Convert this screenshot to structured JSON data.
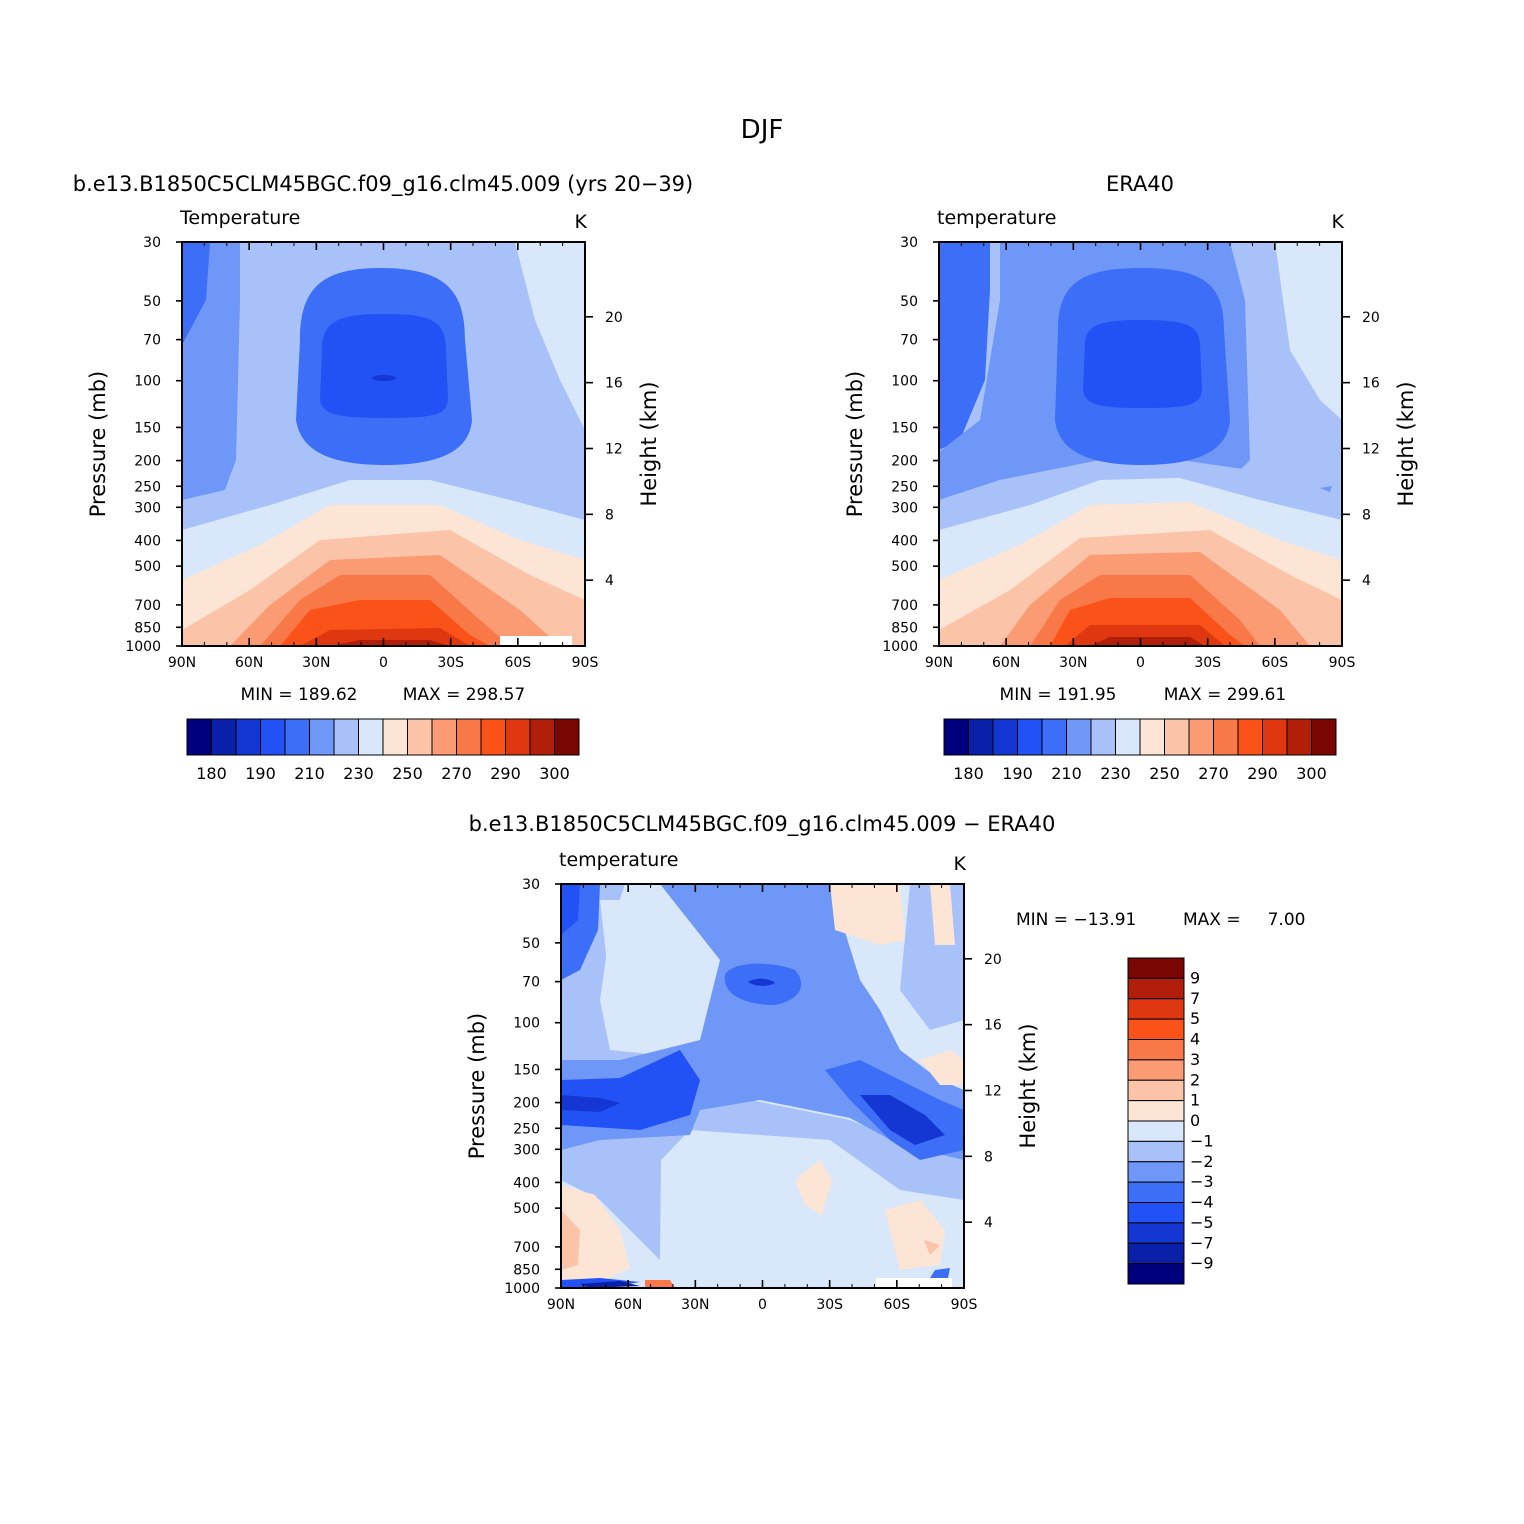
{
  "figure": {
    "title": "DJF",
    "panel_model_title": "b.e13.B1850C5CLM45BGC.f09_g16.clm45.009 (yrs 20−39)",
    "panel_obs_title": "ERA40",
    "panel_diff_title": "b.e13.B1850C5CLM45BGC.f09_g16.clm45.009 − ERA40"
  },
  "chart_data": [
    {
      "type": "contour",
      "id": "model",
      "field_label": "Temperature",
      "units": "K",
      "ylabel": "Pressure (mb)",
      "ylabel_right": "Height (km)",
      "x_ticks": [
        "90N",
        "60N",
        "30N",
        "0",
        "30S",
        "60S",
        "90S"
      ],
      "pressure_ticks": [
        30,
        50,
        70,
        100,
        150,
        200,
        250,
        300,
        400,
        500,
        700,
        850,
        1000
      ],
      "height_ticks": [
        4,
        8,
        12,
        16,
        20
      ],
      "min_text": "MIN = 189.62",
      "max_text": "MAX = 298.57",
      "min": 189.62,
      "max": 298.57,
      "colorbar_labels": [
        "180",
        "190",
        "210",
        "230",
        "250",
        "270",
        "290",
        "300"
      ],
      "colors": [
        "#00007f",
        "#0b20a8",
        "#1437d3",
        "#2251f5",
        "#3d6ef7",
        "#6f97f7",
        "#a8c2f9",
        "#d9e7fb",
        "#fde5d5",
        "#fbc3a8",
        "#fa9b73",
        "#f97847",
        "#fa5218",
        "#df3810",
        "#b11e0a",
        "#7a0603"
      ]
    },
    {
      "type": "contour",
      "id": "obs",
      "field_label": "temperature",
      "units": "K",
      "ylabel": "Pressure (mb)",
      "ylabel_right": "Height (km)",
      "x_ticks": [
        "90N",
        "60N",
        "30N",
        "0",
        "30S",
        "60S",
        "90S"
      ],
      "pressure_ticks": [
        30,
        50,
        70,
        100,
        150,
        200,
        250,
        300,
        400,
        500,
        700,
        850,
        1000
      ],
      "height_ticks": [
        4,
        8,
        12,
        16,
        20
      ],
      "min_text": "MIN = 191.95",
      "max_text": "MAX = 299.61",
      "min": 191.95,
      "max": 299.61,
      "colorbar_labels": [
        "180",
        "190",
        "210",
        "230",
        "250",
        "270",
        "290",
        "300"
      ],
      "colors": [
        "#00007f",
        "#0b20a8",
        "#1437d3",
        "#2251f5",
        "#3d6ef7",
        "#6f97f7",
        "#a8c2f9",
        "#d9e7fb",
        "#fde5d5",
        "#fbc3a8",
        "#fa9b73",
        "#f97847",
        "#fa5218",
        "#df3810",
        "#b11e0a",
        "#7a0603"
      ]
    },
    {
      "type": "contour",
      "id": "diff",
      "field_label": "temperature",
      "units": "K",
      "ylabel": "Pressure (mb)",
      "ylabel_right": "Height (km)",
      "x_ticks": [
        "90N",
        "60N",
        "30N",
        "0",
        "30S",
        "60S",
        "90S"
      ],
      "pressure_ticks": [
        30,
        50,
        70,
        100,
        150,
        200,
        250,
        300,
        400,
        500,
        700,
        850,
        1000
      ],
      "height_ticks": [
        4,
        8,
        12,
        16,
        20
      ],
      "min_text": "MIN = −13.91",
      "max_text": "MAX =     7.00",
      "min": -13.91,
      "max": 7.0,
      "colorbar_labels": [
        "9",
        "7",
        "5",
        "4",
        "3",
        "2",
        "1",
        "0",
        "−1",
        "−2",
        "−3",
        "−4",
        "−5",
        "−7",
        "−9"
      ],
      "colors": [
        "#7a0603",
        "#b11e0a",
        "#df3810",
        "#fa5218",
        "#f97847",
        "#fa9b73",
        "#fbc3a8",
        "#fde5d5",
        "#d9e7fb",
        "#a8c2f9",
        "#6f97f7",
        "#3d6ef7",
        "#2251f5",
        "#1437d3",
        "#0b20a8",
        "#00007f"
      ]
    }
  ]
}
